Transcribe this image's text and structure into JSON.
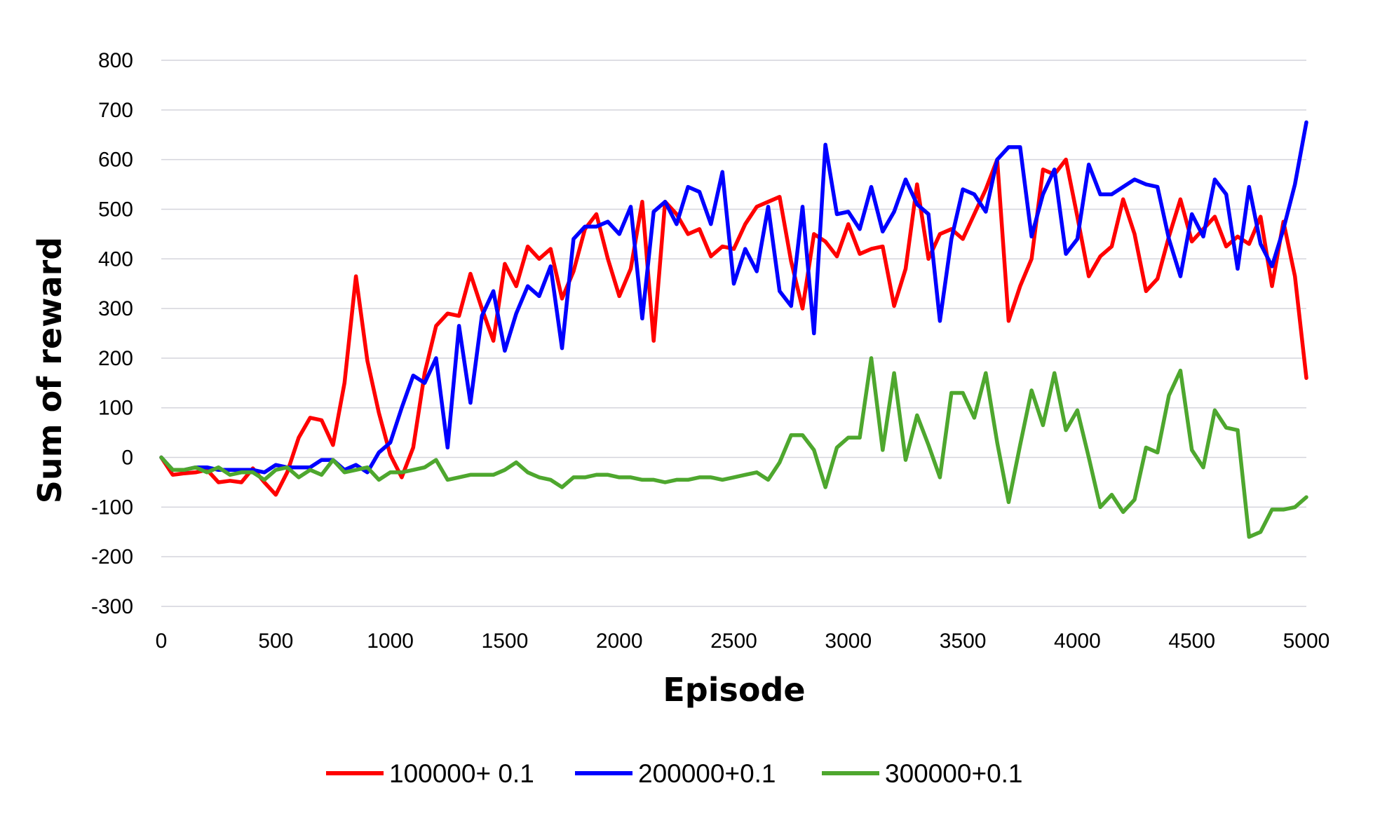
{
  "chart_data": {
    "type": "line",
    "title": "",
    "xlabel": "Episode",
    "ylabel": "Sum of reward",
    "xlim": [
      0,
      5000
    ],
    "ylim": [
      -300,
      800
    ],
    "x_ticks": [
      "0",
      "500",
      "1000",
      "1500",
      "2000",
      "2500",
      "3000",
      "3500",
      "4000",
      "4500",
      "5000"
    ],
    "y_ticks": [
      "800",
      "700",
      "600",
      "500",
      "400",
      "300",
      "200",
      "100",
      "0",
      "-100",
      "-200",
      "-300"
    ],
    "grid": "horizontal",
    "legend_position": "bottom",
    "x": [
      0,
      50,
      100,
      150,
      200,
      250,
      300,
      350,
      400,
      450,
      500,
      550,
      600,
      650,
      700,
      750,
      800,
      850,
      900,
      950,
      1000,
      1050,
      1100,
      1150,
      1200,
      1250,
      1300,
      1350,
      1400,
      1450,
      1500,
      1550,
      1600,
      1650,
      1700,
      1750,
      1800,
      1850,
      1900,
      1950,
      2000,
      2050,
      2100,
      2150,
      2200,
      2250,
      2300,
      2350,
      2400,
      2450,
      2500,
      2550,
      2600,
      2650,
      2700,
      2750,
      2800,
      2850,
      2900,
      2950,
      3000,
      3050,
      3100,
      3150,
      3200,
      3250,
      3300,
      3350,
      3400,
      3450,
      3500,
      3550,
      3600,
      3650,
      3700,
      3750,
      3800,
      3850,
      3900,
      3950,
      4000,
      4050,
      4100,
      4150,
      4200,
      4250,
      4300,
      4350,
      4400,
      4450,
      4500,
      4550,
      4600,
      4650,
      4700,
      4750,
      4800,
      4850,
      4900,
      4950,
      5000
    ],
    "series": [
      {
        "name": "100000+ 0.1",
        "color": "#ff0000",
        "values": [
          0,
          -35,
          -32,
          -30,
          -25,
          -50,
          -47,
          -50,
          -22,
          -50,
          -75,
          -30,
          40,
          80,
          75,
          25,
          150,
          365,
          195,
          90,
          5,
          -40,
          20,
          170,
          265,
          290,
          285,
          370,
          300,
          235,
          390,
          345,
          425,
          400,
          420,
          320,
          375,
          460,
          490,
          400,
          325,
          380,
          515,
          235,
          515,
          490,
          450,
          460,
          405,
          425,
          420,
          470,
          505,
          515,
          525,
          395,
          300,
          450,
          435,
          405,
          470,
          410,
          420,
          425,
          305,
          380,
          550,
          400,
          450,
          460,
          440,
          490,
          540,
          600,
          275,
          345,
          400,
          580,
          570,
          600,
          485,
          365,
          405,
          425,
          520,
          450,
          335,
          360,
          445,
          520,
          435,
          460,
          485,
          425,
          445,
          430,
          485,
          345,
          475,
          365,
          160
        ]
      },
      {
        "name": "200000+0.1",
        "color": "#0000ff",
        "values": [
          0,
          -25,
          -25,
          -20,
          -20,
          -25,
          -25,
          -25,
          -25,
          -30,
          -15,
          -20,
          -20,
          -20,
          -5,
          -5,
          -25,
          -15,
          -30,
          10,
          30,
          100,
          165,
          150,
          200,
          20,
          265,
          110,
          285,
          335,
          215,
          290,
          345,
          325,
          385,
          220,
          440,
          465,
          465,
          475,
          450,
          505,
          280,
          495,
          515,
          470,
          545,
          535,
          470,
          575,
          350,
          420,
          375,
          505,
          335,
          305,
          505,
          250,
          630,
          490,
          495,
          460,
          545,
          455,
          495,
          560,
          510,
          490,
          275,
          440,
          540,
          530,
          495,
          600,
          625,
          625,
          445,
          530,
          580,
          410,
          440,
          590,
          530,
          530,
          545,
          560,
          550,
          545,
          440,
          365,
          490,
          445,
          560,
          530,
          380,
          545,
          430,
          385,
          460,
          550,
          675
        ]
      },
      {
        "name": "300000+0.1",
        "color": "#4ea72e",
        "values": [
          0,
          -25,
          -25,
          -20,
          -30,
          -20,
          -35,
          -30,
          -30,
          -45,
          -25,
          -20,
          -40,
          -25,
          -35,
          -5,
          -30,
          -25,
          -20,
          -45,
          -30,
          -30,
          -25,
          -20,
          -5,
          -45,
          -40,
          -35,
          -35,
          -35,
          -25,
          -10,
          -30,
          -40,
          -45,
          -60,
          -40,
          -40,
          -35,
          -35,
          -40,
          -40,
          -45,
          -45,
          -50,
          -45,
          -45,
          -40,
          -40,
          -45,
          -40,
          -35,
          -30,
          -45,
          -10,
          45,
          45,
          15,
          -60,
          20,
          40,
          40,
          200,
          15,
          170,
          -5,
          85,
          25,
          -40,
          130,
          130,
          80,
          170,
          30,
          -90,
          25,
          135,
          65,
          170,
          55,
          95,
          0,
          -100,
          -75,
          -110,
          -85,
          20,
          10,
          125,
          175,
          15,
          -20,
          95,
          60,
          55,
          -160,
          -150,
          -105,
          -105,
          -100,
          -80
        ]
      }
    ]
  }
}
